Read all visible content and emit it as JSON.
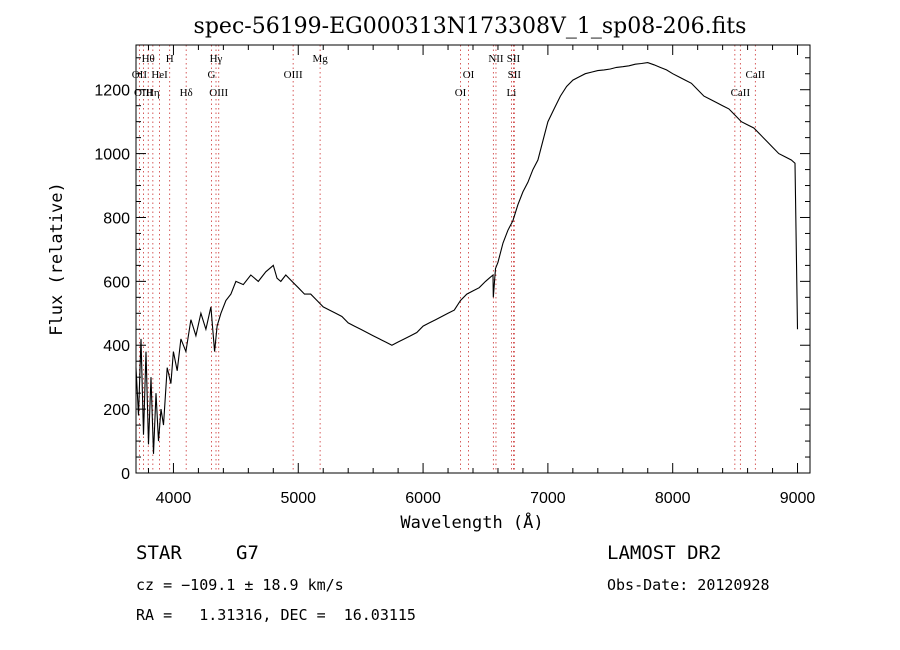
{
  "chart_data": {
    "type": "line",
    "title": "spec-56199-EG000313N173308V_1_sp08-206.fits",
    "xlabel": "Wavelength (Å)",
    "ylabel": "Flux (relative)",
    "xlim": [
      3700,
      9100
    ],
    "ylim": [
      0,
      1340
    ],
    "xticks": [
      4000,
      5000,
      6000,
      7000,
      8000,
      9000
    ],
    "yticks": [
      0,
      200,
      400,
      600,
      800,
      1000,
      1200
    ],
    "grid": false,
    "series": [
      {
        "x": [
          3700,
          3720,
          3740,
          3760,
          3780,
          3800,
          3820,
          3840,
          3860,
          3880,
          3900,
          3920,
          3950,
          3980,
          4000,
          4030,
          4060,
          4100,
          4140,
          4180,
          4220,
          4260,
          4300,
          4330,
          4350,
          4380,
          4420,
          4460,
          4500,
          4560,
          4620,
          4680,
          4740,
          4800,
          4830,
          4860,
          4900,
          4950,
          5000,
          5050,
          5100,
          5150,
          5200,
          5250,
          5300,
          5350,
          5400,
          5450,
          5500,
          5550,
          5600,
          5650,
          5700,
          5750,
          5800,
          5850,
          5900,
          5950,
          6000,
          6050,
          6100,
          6150,
          6200,
          6250,
          6300,
          6350,
          6400,
          6450,
          6500,
          6530,
          6560,
          6563,
          6580,
          6600,
          6640,
          6680,
          6720,
          6760,
          6800,
          6840,
          6880,
          6920,
          6960,
          7000,
          7050,
          7100,
          7150,
          7200,
          7250,
          7300,
          7350,
          7400,
          7450,
          7500,
          7550,
          7600,
          7650,
          7700,
          7750,
          7800,
          7850,
          7900,
          7950,
          8000,
          8050,
          8100,
          8150,
          8200,
          8250,
          8300,
          8350,
          8400,
          8450,
          8500,
          8550,
          8600,
          8650,
          8700,
          8750,
          8800,
          8850,
          8900,
          8950,
          8980,
          8990,
          9000
        ],
        "values": [
          330,
          180,
          420,
          120,
          380,
          90,
          300,
          60,
          250,
          100,
          200,
          150,
          330,
          280,
          380,
          320,
          420,
          380,
          480,
          430,
          500,
          450,
          520,
          380,
          460,
          500,
          540,
          560,
          600,
          590,
          620,
          600,
          630,
          650,
          610,
          600,
          620,
          600,
          580,
          560,
          560,
          540,
          520,
          510,
          500,
          490,
          470,
          460,
          450,
          440,
          430,
          420,
          410,
          400,
          410,
          420,
          430,
          440,
          460,
          470,
          480,
          490,
          500,
          510,
          540,
          560,
          570,
          580,
          600,
          610,
          620,
          550,
          640,
          660,
          720,
          760,
          790,
          840,
          880,
          910,
          950,
          980,
          1040,
          1100,
          1140,
          1180,
          1210,
          1230,
          1240,
          1250,
          1255,
          1260,
          1262,
          1265,
          1270,
          1272,
          1275,
          1280,
          1282,
          1285,
          1278,
          1270,
          1262,
          1250,
          1240,
          1230,
          1220,
          1200,
          1180,
          1170,
          1160,
          1150,
          1140,
          1120,
          1100,
          1090,
          1080,
          1060,
          1040,
          1020,
          1000,
          990,
          980,
          970,
          700,
          450
        ]
      }
    ],
    "spectral_lines": {
      "upper": [
        {
          "label": "Hθ",
          "x": 3798,
          "row": 1
        },
        {
          "label": "H",
          "x": 3970,
          "row": 1
        },
        {
          "label": "Hγ",
          "x": 4341,
          "row": 1
        },
        {
          "label": "Mg",
          "x": 5175,
          "row": 1
        },
        {
          "label": "NII",
          "x": 6584,
          "row": 1
        },
        {
          "label": "SII",
          "x": 6724,
          "row": 1
        },
        {
          "label": "OII",
          "x": 3727,
          "row": 2
        },
        {
          "label": "HeI",
          "x": 3889,
          "row": 2
        },
        {
          "label": "G",
          "x": 4305,
          "row": 2
        },
        {
          "label": "OIII",
          "x": 4959,
          "row": 2
        },
        {
          "label": "OI",
          "x": 6364,
          "row": 2
        },
        {
          "label": "SII",
          "x": 6731,
          "row": 2
        },
        {
          "label": "CaII",
          "x": 8662,
          "row": 2
        },
        {
          "label": "OIII",
          "x": 3760,
          "row": 3
        },
        {
          "label": "Hη",
          "x": 3835,
          "row": 3
        },
        {
          "label": "Hδ",
          "x": 4102,
          "row": 3
        },
        {
          "label": "OIII",
          "x": 4363,
          "row": 3
        },
        {
          "label": "OI",
          "x": 6300,
          "row": 3
        },
        {
          "label": "Li",
          "x": 6708,
          "row": 3
        },
        {
          "label": "CaII",
          "x": 8542,
          "row": 3
        }
      ],
      "marker_x": [
        3727,
        3760,
        3798,
        3835,
        3889,
        3970,
        4102,
        4305,
        4341,
        4363,
        4959,
        5175,
        6300,
        6364,
        6563,
        6584,
        6708,
        6724,
        6731,
        8498,
        8542,
        8662
      ]
    }
  },
  "footer": {
    "object_class": "STAR",
    "subclass": "G7",
    "survey": "LAMOST DR2",
    "cz": "cz = −109.1 ± 18.9 km/s",
    "obs_date": "Obs-Date: 20120928",
    "coords": "RA =   1.31316, DEC =  16.03115"
  },
  "colors": {
    "spectrum": "#000000",
    "marker": "#cc3333",
    "frame": "#000000"
  }
}
